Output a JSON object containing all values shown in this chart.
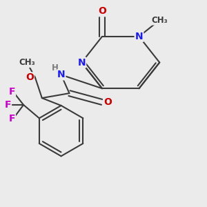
{
  "bg_color": "#ebebeb",
  "bond_color": "#3a3a3a",
  "bond_width": 1.5,
  "atom_colors": {
    "N": "#1a1aff",
    "O": "#cc0000",
    "F": "#cc00cc",
    "C": "#3a3a3a",
    "H": "#7a7a7a"
  },
  "font_size_large": 10,
  "font_size_small": 8.5,
  "font_size_methyl": 8
}
